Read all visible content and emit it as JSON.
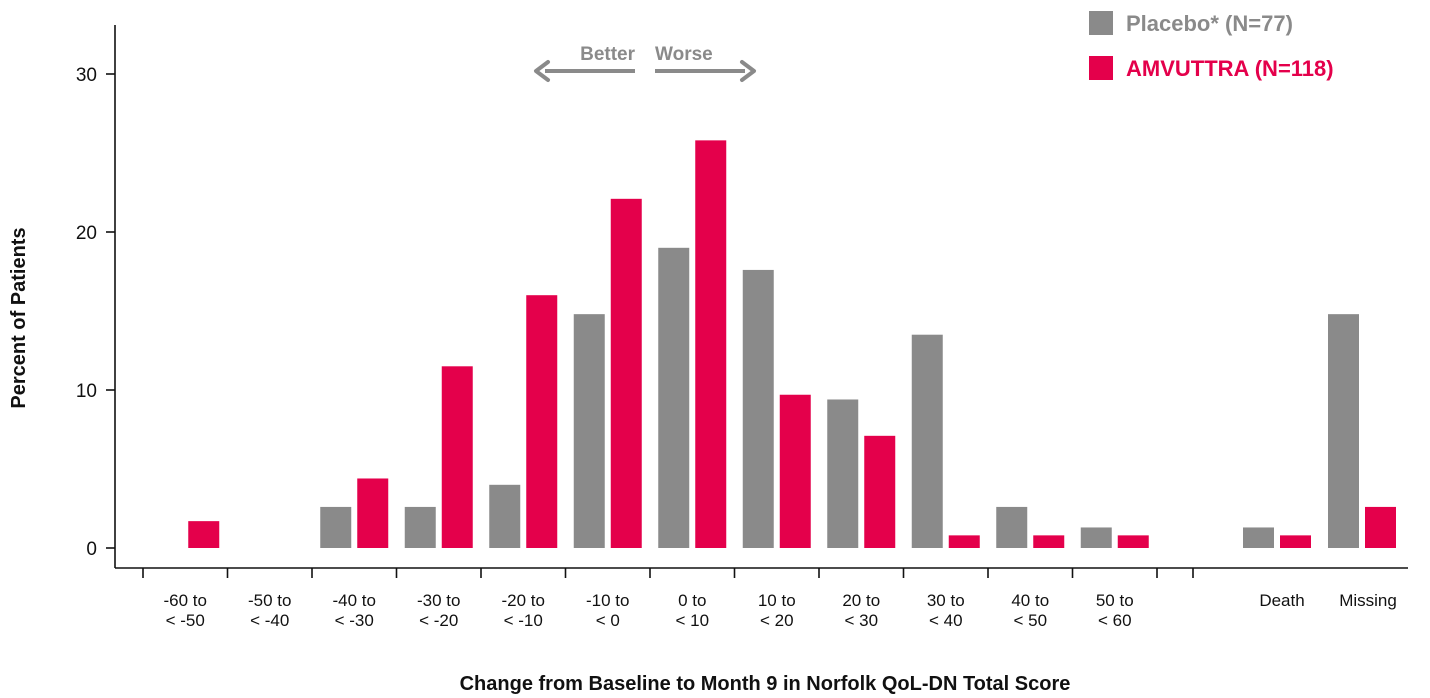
{
  "chart_data": {
    "type": "bar",
    "ylabel": "Percent of Patients",
    "xlabel": "Change from Baseline to Month 9 in Norfolk QoL-DN Total Score",
    "ylim": [
      0,
      33
    ],
    "yticks": [
      0,
      10,
      20,
      30
    ],
    "grid": false,
    "legend_position": "top-right",
    "categories": [
      [
        "-60 to",
        "< -50"
      ],
      [
        "-50 to",
        "< -40"
      ],
      [
        "-40 to",
        "< -30"
      ],
      [
        "-30 to",
        "< -20"
      ],
      [
        "-20 to",
        "< -10"
      ],
      [
        "-10 to",
        "< 0"
      ],
      [
        "0 to",
        "< 10"
      ],
      [
        "10 to",
        "< 20"
      ],
      [
        "20 to",
        "< 30"
      ],
      [
        "30 to",
        "< 40"
      ],
      [
        "40 to",
        "< 50"
      ],
      [
        "50 to",
        "< 60"
      ],
      [
        "Death"
      ],
      [
        "Missing"
      ]
    ],
    "series": [
      {
        "name": "Placebo* (N=77)",
        "color": "#8a8a8a",
        "values": [
          0,
          0,
          2.6,
          2.6,
          4.0,
          14.8,
          19.0,
          17.6,
          9.4,
          13.5,
          2.6,
          1.3,
          1.3,
          14.8
        ]
      },
      {
        "name": "AMVUTTRA (N=118)",
        "color": "#e4004b",
        "values": [
          1.7,
          0,
          4.4,
          11.5,
          16.0,
          22.1,
          25.8,
          9.7,
          7.1,
          0.8,
          0.8,
          0.8,
          0.8,
          2.6
        ]
      }
    ],
    "annotations": {
      "better": "Better",
      "worse": "Worse"
    }
  }
}
